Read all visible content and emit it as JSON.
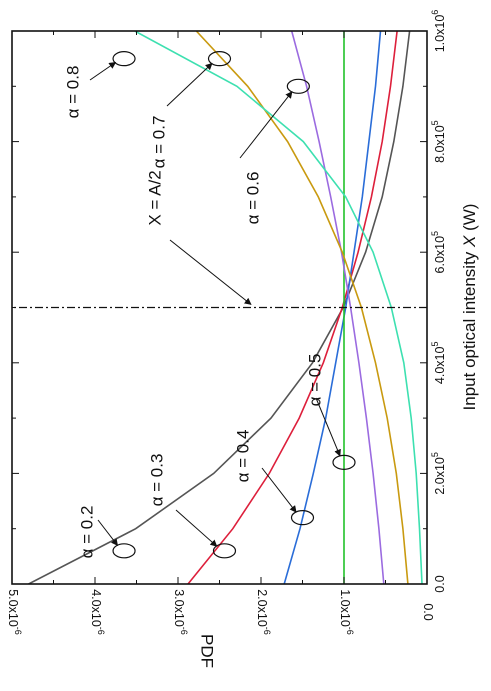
{
  "chart_data": {
    "type": "line",
    "title": "",
    "xlabel_prefix": "Input optical intensity ",
    "xlabel_var": "X",
    "xlabel_suffix": " (W)",
    "ylabel": "PDF",
    "xlim": [
      0,
      1000000
    ],
    "ylim": [
      0,
      5e-06
    ],
    "x_ticks": [
      {
        "v": 0,
        "m": "0.0",
        "e": ""
      },
      {
        "v": 200000,
        "m": "2.0x10",
        "e": "5"
      },
      {
        "v": 400000,
        "m": "4.0x10",
        "e": "5"
      },
      {
        "v": 600000,
        "m": "6.0x10",
        "e": "5"
      },
      {
        "v": 800000,
        "m": "8.0x10",
        "e": "5"
      },
      {
        "v": 1000000,
        "m": "1.0x10",
        "e": "6"
      }
    ],
    "y_ticks": [
      {
        "v": 0,
        "m": "0.0",
        "e": ""
      },
      {
        "v": 1e-06,
        "m": "1.0x10",
        "e": "-6"
      },
      {
        "v": 2e-06,
        "m": "2.0x10",
        "e": "-6"
      },
      {
        "v": 3e-06,
        "m": "3.0x10",
        "e": "-6"
      },
      {
        "v": 4e-06,
        "m": "4.0x10",
        "e": "-6"
      },
      {
        "v": 5e-06,
        "m": "5.0x10",
        "e": "-6"
      }
    ],
    "series": [
      {
        "label": "α = 0.2",
        "color": "#555555",
        "x": [
          0,
          100000,
          200000,
          300000,
          400000,
          500000,
          600000,
          700000,
          800000,
          900000,
          1000000
        ],
        "y": [
          4.8e-06,
          3.51e-06,
          2.57e-06,
          1.88e-06,
          1.38e-06,
          1.01e-06,
          7.4e-07,
          5.4e-07,
          4e-07,
          2.9e-07,
          2.1e-07
        ]
      },
      {
        "label": "α = 0.3",
        "color": "#dd1f3b",
        "x": [
          0,
          100000,
          200000,
          300000,
          400000,
          500000,
          600000,
          700000,
          800000,
          900000,
          1000000
        ],
        "y": [
          2.88e-06,
          2.34e-06,
          1.9e-06,
          1.54e-06,
          1.25e-06,
          1.02e-06,
          8.3e-07,
          6.7e-07,
          5.4e-07,
          4.4e-07,
          3.6e-07
        ]
      },
      {
        "label": "α = 0.4",
        "color": "#2a6dd8",
        "x": [
          0,
          100000,
          200000,
          300000,
          400000,
          500000,
          600000,
          700000,
          800000,
          900000,
          1000000
        ],
        "y": [
          1.72e-06,
          1.53e-06,
          1.37e-06,
          1.22e-06,
          1.1e-06,
          9.8e-07,
          8.8e-07,
          7.8e-07,
          7e-07,
          6.2e-07,
          5.6e-07
        ]
      },
      {
        "label": "α = 0.5",
        "color": "#22c22a",
        "x": [
          0,
          1000000
        ],
        "y": [
          1e-06,
          1e-06
        ]
      },
      {
        "label": "α = 0.6",
        "color": "#9b6be0",
        "x": [
          0,
          100000,
          200000,
          300000,
          400000,
          500000,
          600000,
          700000,
          800000,
          900000,
          1000000
        ],
        "y": [
          5.2e-07,
          5.8e-07,
          6.5e-07,
          7.3e-07,
          8.2e-07,
          9.2e-07,
          1.03e-06,
          1.16e-06,
          1.3e-06,
          1.45e-06,
          1.63e-06
        ]
      },
      {
        "label": "α = 0.7",
        "color": "#c99a10",
        "x": [
          0,
          100000,
          200000,
          300000,
          400000,
          500000,
          600000,
          700000,
          800000,
          900000,
          1000000
        ],
        "y": [
          2.3e-07,
          2.9e-07,
          3.7e-07,
          4.8e-07,
          6.2e-07,
          7.9e-07,
          1.02e-06,
          1.31e-06,
          1.68e-06,
          2.16e-06,
          2.78e-06
        ]
      },
      {
        "label": "α = 0.8",
        "color": "#3de0b0",
        "x": [
          0,
          100000,
          200000,
          300000,
          400000,
          500000,
          600000,
          700000,
          800000,
          900000,
          1000000
        ],
        "y": [
          6e-08,
          9e-08,
          1.3e-07,
          1.9e-07,
          2.8e-07,
          4.3e-07,
          6.5e-07,
          9.8e-07,
          1.49e-06,
          2.29e-06,
          3.52e-06
        ]
      }
    ],
    "vline": {
      "label": "X = A/2",
      "x": 500000
    },
    "annotations": [
      {
        "key": "a02",
        "text": "α = 0.2",
        "ellipse_at": [
          60000,
          3.65e-06
        ]
      },
      {
        "key": "a03",
        "text": "α = 0.3",
        "ellipse_at": [
          60000,
          2.44e-06
        ]
      },
      {
        "key": "a04",
        "text": "α = 0.4",
        "ellipse_at": [
          120000,
          1.5e-06
        ]
      },
      {
        "key": "a05",
        "text": "α = 0.5",
        "ellipse_at": [
          220000,
          1e-06
        ]
      },
      {
        "key": "a06",
        "text": "α = 0.6",
        "ellipse_at": [
          900000,
          1.55e-06
        ]
      },
      {
        "key": "a07",
        "text": "α = 0.7",
        "ellipse_at": [
          950000,
          2.5e-06
        ]
      },
      {
        "key": "a08",
        "text": "α = 0.8",
        "ellipse_at": [
          950000,
          3.65e-06
        ]
      }
    ]
  }
}
